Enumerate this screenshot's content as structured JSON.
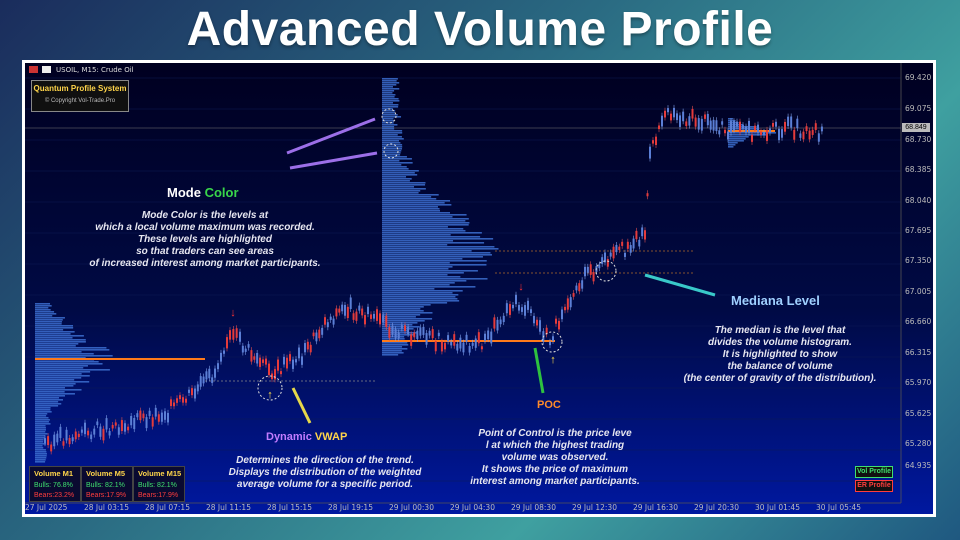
{
  "headline": "Advanced Volume Profile",
  "header": {
    "symbol": "USOIL, M15:  Crude Oil"
  },
  "logo": {
    "title": "Quantum Profile System",
    "copyright": "© Copyright Vol-Trade.Pro"
  },
  "annotations": {
    "mode_color": {
      "title_a": "Mode ",
      "title_b": "Color",
      "lines": [
        "Mode Color  is  the levels at",
        "which a local volume maximum was recorded.",
        "These levels are highlighted",
        "so that traders can see areas",
        "of increased interest among market participants."
      ]
    },
    "dynamic_vwap": {
      "title_a": "Dynamic ",
      "title_b": "VWAP",
      "lines": [
        "Determines the direction of the trend.",
        "Displays the distribution of the weighted",
        "average volume for a specific period."
      ]
    },
    "poc": {
      "title": "POC",
      "lines": [
        "Point of Control is the price leve",
        "l at which the highest trading",
        "volume was observed.",
        "It shows the price of maximum",
        "interest among market participants."
      ]
    },
    "mediana": {
      "title": "Mediana Level",
      "lines": [
        "The median is the level that",
        "divides the volume histogram.",
        "It is highlighted to show",
        "the balance of volume",
        "(the center of gravity of the distribution)."
      ]
    }
  },
  "price_axis": [
    "69.420",
    "69.075",
    "68.730",
    "68.385",
    "68.040",
    "67.695",
    "67.350",
    "67.005",
    "66.660",
    "66.315",
    "65.970",
    "65.625",
    "65.280",
    "64.935"
  ],
  "current_price": "68.849",
  "time_axis": [
    "27 Jul 2025",
    "28 Jul 03:15",
    "28 Jul 07:15",
    "28 Jul 11:15",
    "28 Jul 15:15",
    "28 Jul 19:15",
    "29 Jul 00:30",
    "29 Jul 04:30",
    "29 Jul 08:30",
    "29 Jul 12:30",
    "29 Jul 16:30",
    "29 Jul 20:30",
    "30 Jul 01:45",
    "30 Jul 05:45"
  ],
  "volume_tables": [
    {
      "label": "Volume M1",
      "bulls": "Bulls: 76.8%",
      "bears": "Bears:23.2%"
    },
    {
      "label": "Volume M5",
      "bulls": "Bulls:  82.1%",
      "bears": "Bears:17.9%"
    },
    {
      "label": "Volume M15",
      "bulls": "Bulls:  82.1%",
      "bears": "Bears:17.9%"
    }
  ],
  "buttons": {
    "vol_profile": "Vol Profile",
    "er_profile": "ER Profile"
  },
  "colors": {
    "bull": "#5b7fd6",
    "bear": "#e53b3b",
    "poc": "#ff7a1a",
    "mode_title": "#39d64a",
    "vwap_title": "#c27cff",
    "median_title": "#9fd0ff"
  }
}
